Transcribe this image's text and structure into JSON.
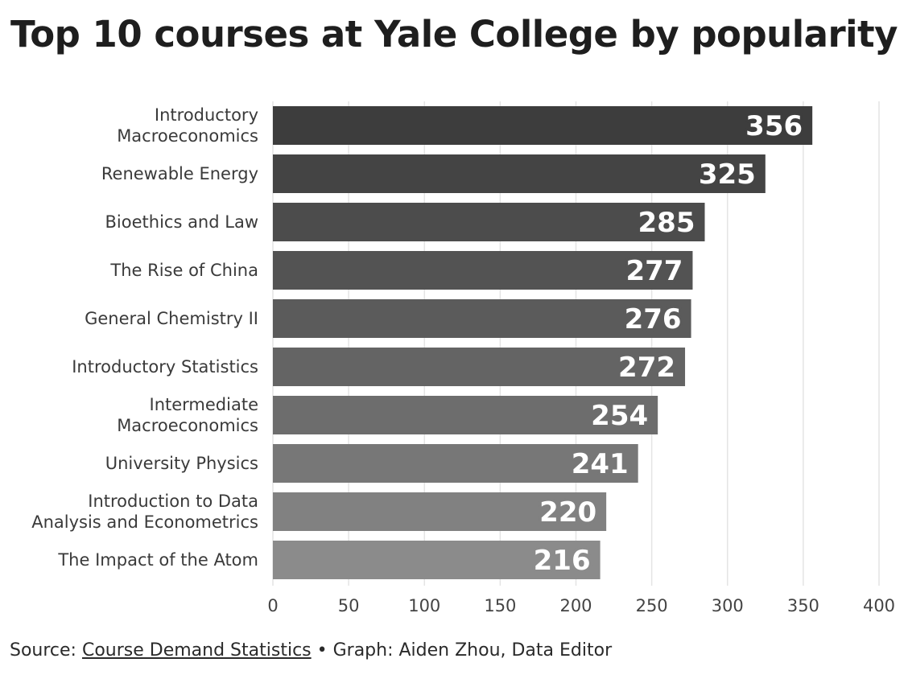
{
  "chart_data": {
    "type": "bar",
    "orientation": "horizontal",
    "title": "Top 10 courses at Yale College by popularity",
    "categories": [
      [
        "Introductory",
        "Macroeconomics"
      ],
      [
        "Renewable Energy"
      ],
      [
        "Bioethics and Law"
      ],
      [
        "The Rise of China"
      ],
      [
        "General Chemistry II"
      ],
      [
        "Introductory Statistics"
      ],
      [
        "Intermediate",
        "Macroeconomics"
      ],
      [
        "University Physics"
      ],
      [
        "Introduction to Data",
        "Analysis and Econometrics"
      ],
      [
        "The Impact of the Atom"
      ]
    ],
    "values": [
      356,
      325,
      285,
      277,
      276,
      272,
      254,
      241,
      220,
      216
    ],
    "bar_colors": [
      "#3d3d3d",
      "#444444",
      "#4c4c4c",
      "#535353",
      "#5b5b5b",
      "#646464",
      "#6d6d6d",
      "#777777",
      "#818181",
      "#8b8b8b"
    ],
    "xlim": [
      0,
      400
    ],
    "xticks": [
      0,
      50,
      100,
      150,
      200,
      250,
      300,
      350,
      400
    ],
    "xlabel": "",
    "ylabel": "",
    "grid": true
  },
  "footer": {
    "source_prefix": "Source: ",
    "source_link": "Course Demand Statistics",
    "credit": " • Graph: Aiden Zhou, Data Editor"
  }
}
